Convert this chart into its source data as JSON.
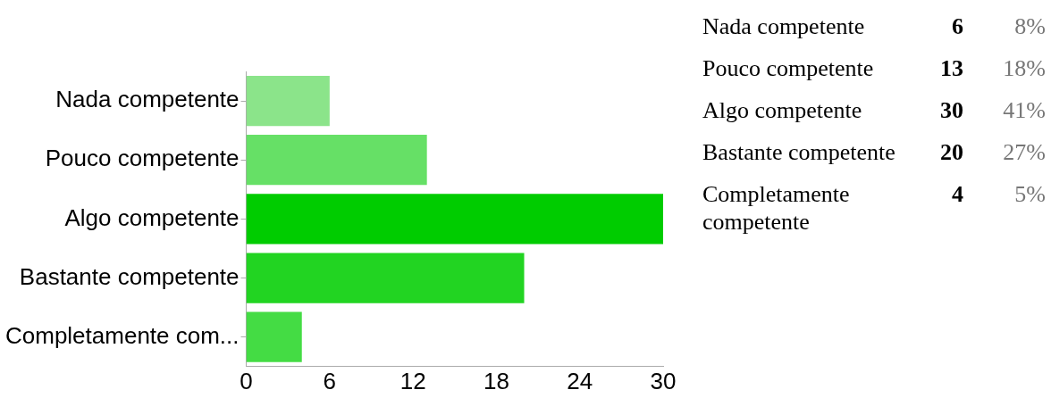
{
  "chart_data": [
    {
      "type": "bar",
      "orientation": "horizontal",
      "categories": [
        "Nada competente",
        "Pouco competente",
        "Algo competente",
        "Bastante competente",
        "Completamente com..."
      ],
      "values": [
        6,
        13,
        30,
        20,
        4
      ],
      "colors": [
        "#8be48a",
        "#66e066",
        "#00cc00",
        "#22d422",
        "#44dc44"
      ],
      "xlim": [
        0,
        30
      ],
      "xticks": [
        0,
        6,
        12,
        18,
        24,
        30
      ],
      "grid": false,
      "legend": false
    },
    {
      "type": "other",
      "categories": [
        "Nada competente",
        "Pouco competente",
        "Algo competente",
        "Bastante competente",
        "Completamente competente"
      ],
      "values": [
        6,
        13,
        30,
        20,
        4
      ],
      "data_labels": true,
      "annotations": [
        "8%",
        "18%",
        "41%",
        "27%",
        "5%"
      ]
    }
  ]
}
